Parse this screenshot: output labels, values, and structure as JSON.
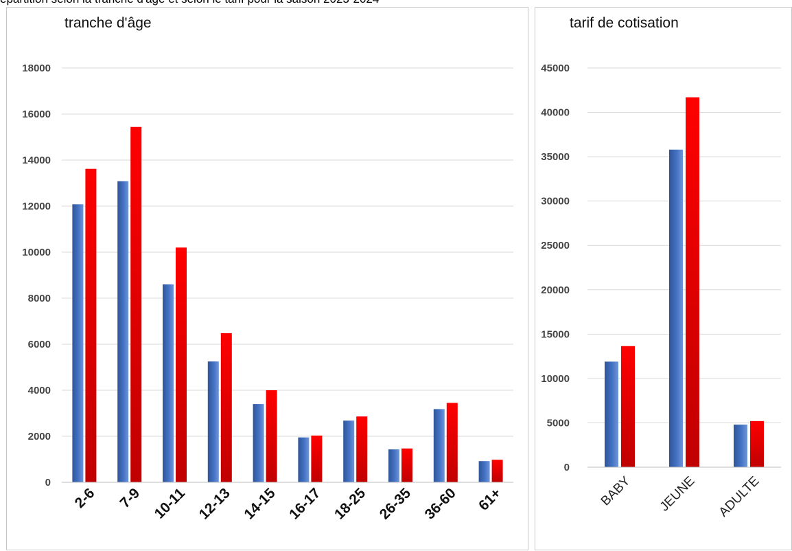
{
  "top_fragment": "épartition selon la tranche d'âge et selon le tarif pour la saison 2023-2024",
  "colors": {
    "series_1": "#4472c4",
    "series_2": "#ff0000",
    "grid": "#d9d9d9"
  },
  "chart_data": [
    {
      "type": "bar",
      "title": "tranche d'âge",
      "categories": [
        "2-6",
        "7-9",
        "10-11",
        "12-13",
        "14-15",
        "16-17",
        "18-25",
        "26-35",
        "36-60",
        "61+"
      ],
      "series": [
        {
          "values": [
            12080,
            13080,
            8600,
            5250,
            3400,
            1950,
            2680,
            1430,
            3180,
            920
          ]
        },
        {
          "values": [
            13620,
            15440,
            10200,
            6480,
            4000,
            2030,
            2860,
            1470,
            3450,
            980
          ]
        }
      ],
      "ylim": [
        0,
        18000
      ],
      "yticks": [
        "0",
        "2000",
        "4000",
        "6000",
        "8000",
        "10000",
        "12000",
        "14000",
        "16000",
        "18000"
      ],
      "grid": true,
      "legend": "none"
    },
    {
      "type": "bar",
      "title": "tarif de cotisation",
      "categories": [
        "BABY",
        "JEUNE",
        "ADULTE"
      ],
      "series": [
        {
          "values": [
            11900,
            35800,
            4800
          ]
        },
        {
          "values": [
            13650,
            41700,
            5200
          ]
        }
      ],
      "ylim": [
        0,
        45000
      ],
      "yticks": [
        "0",
        "5000",
        "10000",
        "15000",
        "20000",
        "25000",
        "30000",
        "35000",
        "40000",
        "45000"
      ],
      "grid": true,
      "legend": "none"
    }
  ]
}
